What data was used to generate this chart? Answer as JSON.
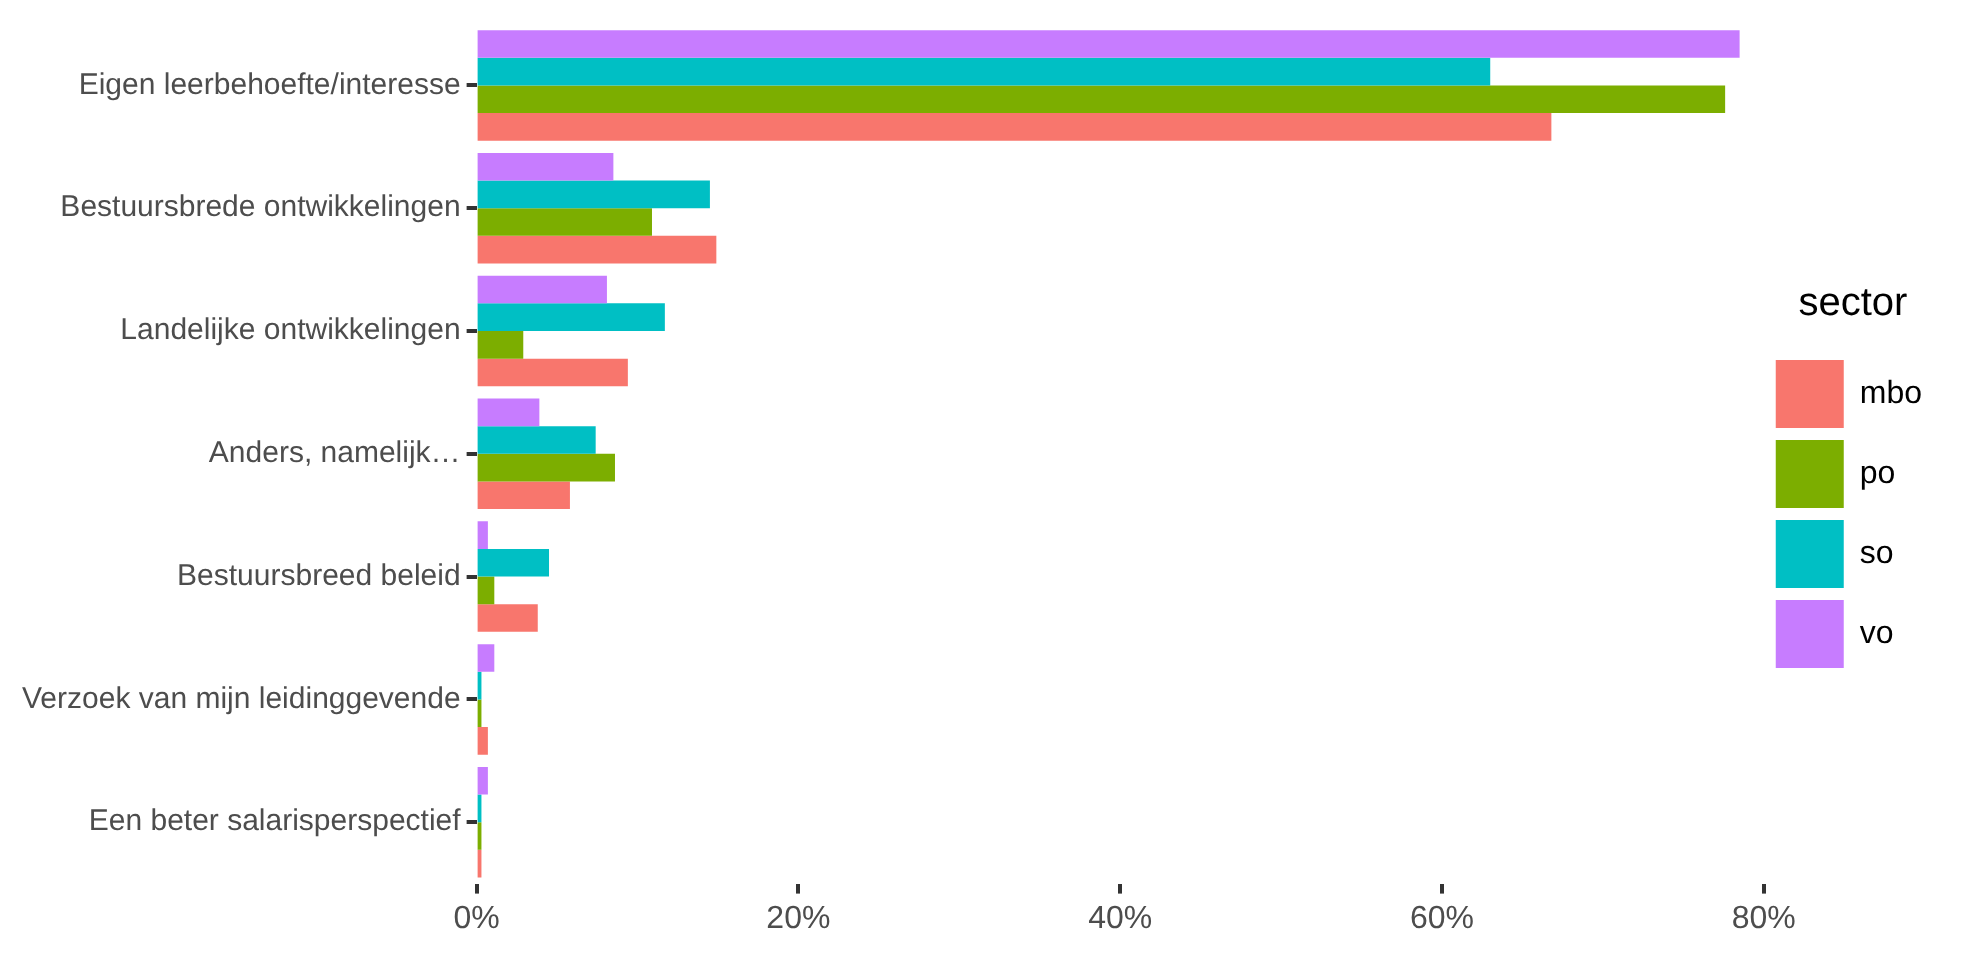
{
  "chart_data": {
    "type": "bar",
    "orientation": "horizontal",
    "legend_title": "sector",
    "legend": "right",
    "grid": false,
    "categories": [
      "Eigen leerbehoefte/interesse",
      "Bestuursbrede ontwikkelingen",
      "Landelijke ontwikkelingen",
      "Anders, namelijk…",
      "Bestuursbreed beleid",
      "Verzoek van mijn leidinggevende",
      "Een beter salarisperspectief"
    ],
    "xlim": [
      0,
      80
    ],
    "xticks": [
      {
        "value": 0,
        "label": "0%"
      },
      {
        "value": 20,
        "label": "20%"
      },
      {
        "value": 40,
        "label": "40%"
      },
      {
        "value": 60,
        "label": "60%"
      },
      {
        "value": 80,
        "label": "80%"
      }
    ],
    "series": [
      {
        "name": "mbo",
        "color": "#f8766d",
        "values": [
          66.8,
          14.9,
          9.4,
          5.8,
          3.8,
          0.7,
          0.3
        ]
      },
      {
        "name": "po",
        "color": "#7cae00",
        "values": [
          77.6,
          10.9,
          2.9,
          8.6,
          1.1,
          0.3,
          0.3
        ]
      },
      {
        "name": "so",
        "color": "#00bfc4",
        "values": [
          63.0,
          14.5,
          11.7,
          7.4,
          4.5,
          0.3,
          0.3
        ]
      },
      {
        "name": "vo",
        "color": "#c77cff",
        "values": [
          78.5,
          8.5,
          8.1,
          3.9,
          0.7,
          1.1,
          0.7
        ]
      }
    ]
  }
}
